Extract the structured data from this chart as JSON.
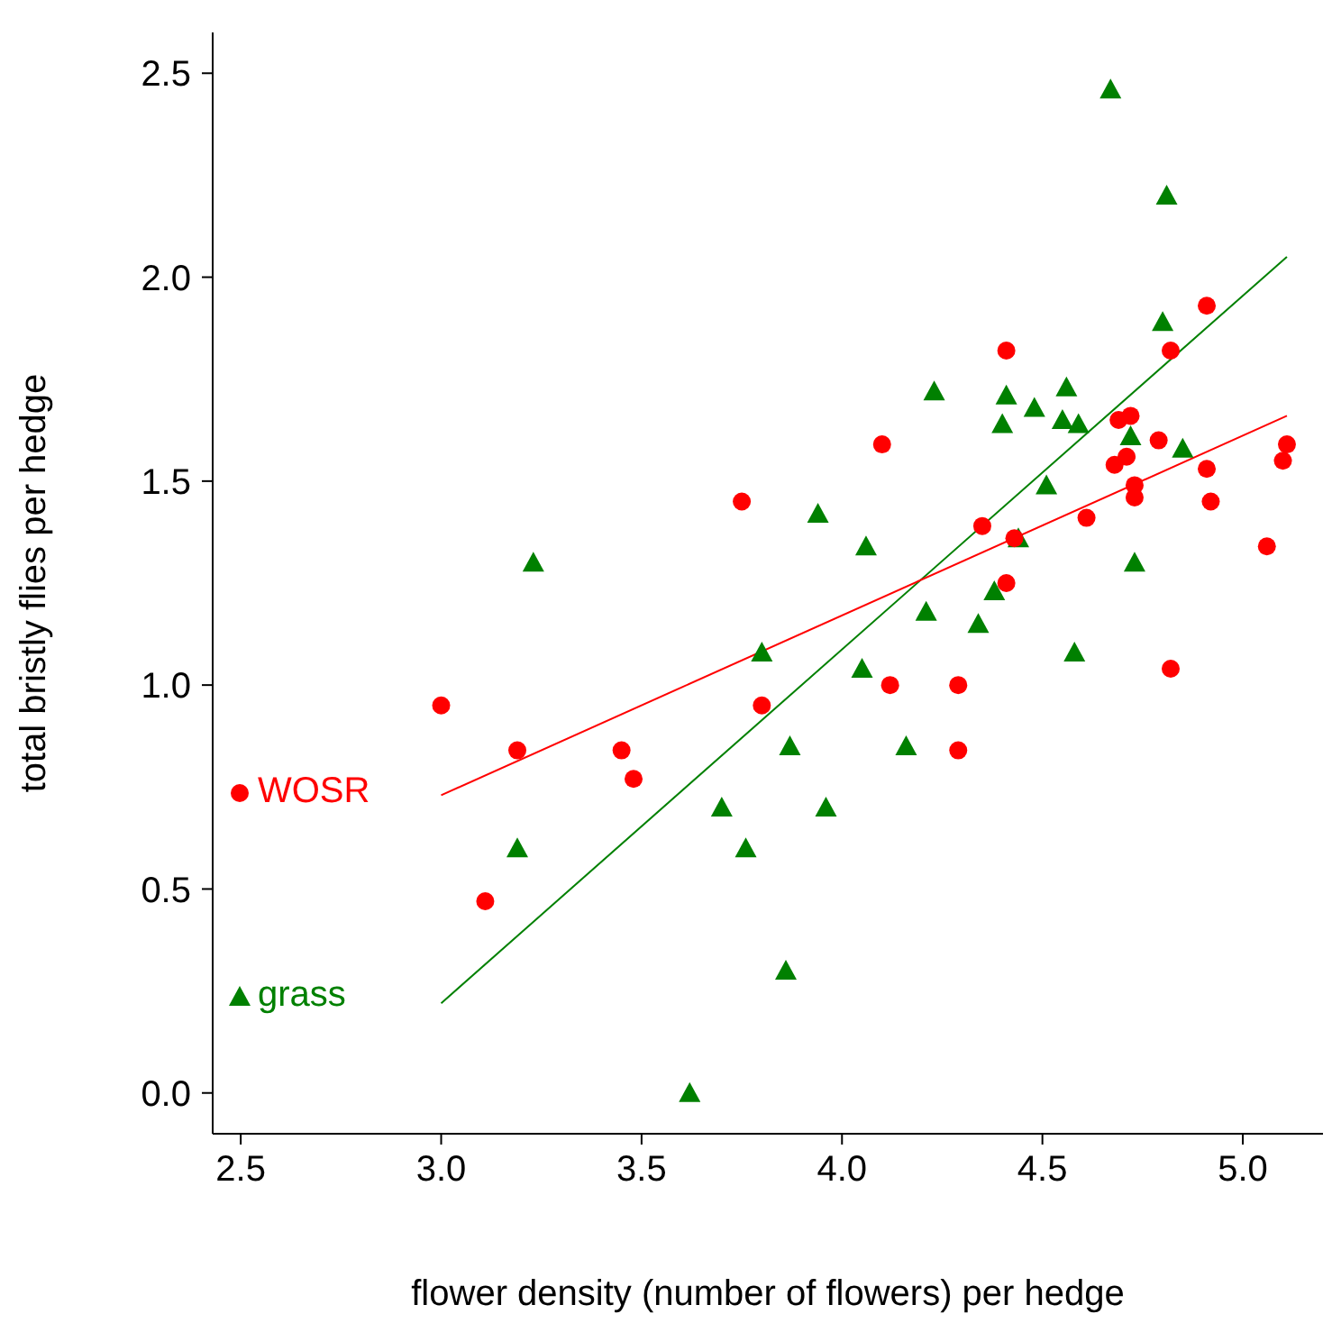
{
  "chart_data": {
    "type": "scatter",
    "xlabel": "flower density (number of flowers) per hedge",
    "ylabel": "total bristly flies per hedge",
    "xlim": [
      2.43,
      5.2
    ],
    "ylim": [
      -0.1,
      2.6
    ],
    "xticks": [
      {
        "value": 2.5,
        "label": "2.5"
      },
      {
        "value": 3,
        "label": "3.0"
      },
      {
        "value": 3.5,
        "label": "3.5"
      },
      {
        "value": 4,
        "label": "4.0"
      },
      {
        "value": 4.5,
        "label": "4.5"
      },
      {
        "value": 5,
        "label": "5.0"
      }
    ],
    "yticks": [
      {
        "value": 0,
        "label": "0.0"
      },
      {
        "value": 0.5,
        "label": "0.5"
      },
      {
        "value": 1,
        "label": "1.0"
      },
      {
        "value": 1.5,
        "label": "1.5"
      },
      {
        "value": 2,
        "label": "2.0"
      },
      {
        "value": 2.5,
        "label": "2.5"
      }
    ],
    "grid": false,
    "legend": "bottom left",
    "series": [
      {
        "name": "WOSR",
        "marker": "circle",
        "color": "#ff0000",
        "x": [
          4.41,
          4.91,
          4.82,
          4.1,
          4.69,
          4.72,
          4.79,
          4.68,
          4.71,
          4.91,
          5.11,
          5.1,
          4.73,
          4.73,
          4.92,
          3.75,
          4.61,
          4.35,
          4.43,
          5.06,
          4.41,
          4.12,
          4.29,
          3.8,
          3.0,
          4.82,
          4.29,
          3.45,
          3.19,
          3.48,
          3.11
        ],
        "values": [
          1.82,
          1.93,
          1.82,
          1.59,
          1.65,
          1.66,
          1.6,
          1.54,
          1.56,
          1.53,
          1.59,
          1.55,
          1.49,
          1.46,
          1.45,
          1.45,
          1.41,
          1.39,
          1.36,
          1.34,
          1.25,
          1.0,
          1.0,
          0.95,
          0.95,
          1.04,
          0.84,
          0.84,
          0.84,
          0.77,
          0.47
        ]
      },
      {
        "name": "grass",
        "marker": "triangle",
        "color": "#008000",
        "x": [
          4.67,
          4.81,
          4.8,
          4.23,
          4.41,
          4.48,
          4.56,
          4.4,
          4.55,
          4.59,
          4.72,
          4.85,
          4.51,
          3.94,
          4.06,
          3.23,
          4.73,
          4.38,
          4.21,
          4.34,
          3.8,
          4.58,
          4.05,
          3.87,
          4.16,
          3.7,
          3.96,
          3.19,
          3.76,
          3.86,
          3.62,
          4.44
        ],
        "values": [
          2.46,
          2.2,
          1.89,
          1.72,
          1.71,
          1.68,
          1.73,
          1.64,
          1.65,
          1.64,
          1.61,
          1.58,
          1.49,
          1.42,
          1.34,
          1.3,
          1.3,
          1.23,
          1.18,
          1.15,
          1.08,
          1.08,
          1.04,
          0.85,
          0.85,
          0.7,
          0.7,
          0.6,
          0.6,
          0.3,
          0.0,
          1.36
        ]
      },
      {
        "type": "line",
        "marker": "none",
        "line_style": "solid",
        "color": "#ff0000",
        "x": [
          3.0,
          5.11
        ],
        "values": [
          0.73,
          1.66
        ]
      },
      {
        "type": "line",
        "marker": "none",
        "line_style": "solid",
        "color": "#008000",
        "x": [
          3.0,
          5.11
        ],
        "values": [
          0.22,
          2.05
        ]
      }
    ]
  }
}
